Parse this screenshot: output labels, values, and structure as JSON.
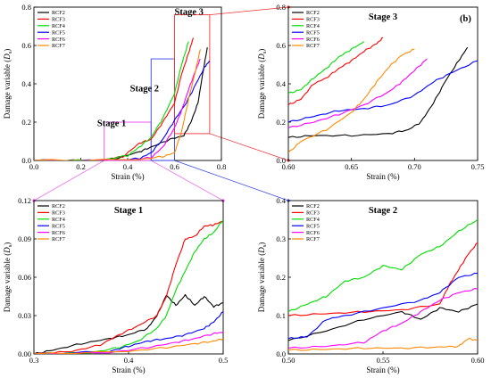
{
  "chart_data": [
    {
      "id": "a",
      "type": "line",
      "panel_label": "",
      "title": "",
      "xlabel": "Strain (%)",
      "ylabel": "Damage variable (D_s)",
      "xlim": [
        0,
        0.8
      ],
      "ylim": [
        0,
        0.8
      ],
      "xticks": [
        "0.0",
        "0.2",
        "0.4",
        "0.6",
        "0.8"
      ],
      "yticks": [
        "0.0",
        "0.2",
        "0.4",
        "0.6",
        "0.8"
      ],
      "legend": "top-left",
      "annotations": [
        {
          "text": "Stage 1",
          "x": 0.27,
          "y": 0.18
        },
        {
          "text": "Stage 2",
          "x": 0.41,
          "y": 0.36
        },
        {
          "text": "Stage 3",
          "x": 0.6,
          "y": 0.76
        }
      ],
      "zoom_boxes": [
        {
          "stage": 1,
          "x": [
            0.3,
            0.5
          ],
          "y": [
            0,
            0.2
          ],
          "color": "#ee44ee"
        },
        {
          "stage": 2,
          "x": [
            0.5,
            0.6
          ],
          "y": [
            0,
            0.53
          ],
          "color": "#3344ee"
        },
        {
          "stage": 3,
          "x": [
            0.6,
            0.75
          ],
          "y": [
            0.14,
            0.76
          ],
          "color": "#ee3333"
        }
      ],
      "series": [
        {
          "name": "RCF2",
          "color": "#000000",
          "x": [
            0,
            0.25,
            0.35,
            0.45,
            0.5,
            0.58,
            0.64,
            0.67,
            0.7,
            0.72,
            0.74
          ],
          "y": [
            0,
            0,
            0.01,
            0.045,
            0.07,
            0.11,
            0.13,
            0.2,
            0.3,
            0.45,
            0.59
          ]
        },
        {
          "name": "RCF3",
          "color": "#ff0000",
          "x": [
            0,
            0.28,
            0.38,
            0.45,
            0.5,
            0.55,
            0.6,
            0.63,
            0.66,
            0.68
          ],
          "y": [
            0,
            0,
            0.02,
            0.09,
            0.11,
            0.2,
            0.3,
            0.45,
            0.56,
            0.64
          ]
        },
        {
          "name": "RCF4",
          "color": "#00dd00",
          "x": [
            0,
            0.28,
            0.4,
            0.45,
            0.5,
            0.55,
            0.6,
            0.63,
            0.66
          ],
          "y": [
            0,
            0,
            0.025,
            0.07,
            0.12,
            0.22,
            0.35,
            0.5,
            0.62
          ]
        },
        {
          "name": "RCF5",
          "color": "#0000ff",
          "x": [
            0,
            0.35,
            0.45,
            0.5,
            0.55,
            0.6,
            0.65,
            0.7,
            0.73,
            0.75
          ],
          "y": [
            0,
            0,
            0.01,
            0.04,
            0.11,
            0.21,
            0.3,
            0.42,
            0.49,
            0.52
          ]
        },
        {
          "name": "RCF6",
          "color": "#ff00ff",
          "x": [
            0,
            0.4,
            0.5,
            0.55,
            0.6,
            0.63,
            0.66,
            0.69,
            0.71
          ],
          "y": [
            0,
            0,
            0.015,
            0.07,
            0.17,
            0.26,
            0.37,
            0.47,
            0.53
          ]
        },
        {
          "name": "RCF7",
          "color": "#ff8800",
          "x": [
            0,
            0.45,
            0.55,
            0.6,
            0.63,
            0.66,
            0.69,
            0.71
          ],
          "y": [
            0,
            0.005,
            0.02,
            0.04,
            0.15,
            0.32,
            0.47,
            0.58
          ]
        }
      ]
    },
    {
      "id": "b",
      "type": "line",
      "panel_label": "(b)",
      "title": "Stage 3",
      "xlabel": "Strain (%)",
      "ylabel": "Damage variable (D_s)",
      "xlim": [
        0.6,
        0.75
      ],
      "ylim": [
        0,
        0.8
      ],
      "xticks": [
        "0.60",
        "0.65",
        "0.70",
        "0.75"
      ],
      "yticks": [
        "0.0",
        "0.2",
        "0.4",
        "0.6",
        "0.8"
      ],
      "legend": "top-left",
      "series": [
        {
          "name": "RCF2",
          "color": "#000000",
          "x": [
            0.6,
            0.62,
            0.65,
            0.68,
            0.695,
            0.705,
            0.715,
            0.725,
            0.735,
            0.742
          ],
          "y": [
            0.12,
            0.13,
            0.13,
            0.14,
            0.16,
            0.2,
            0.3,
            0.42,
            0.52,
            0.59
          ]
        },
        {
          "name": "RCF3",
          "color": "#ff0000",
          "x": [
            0.6,
            0.61,
            0.62,
            0.63,
            0.64,
            0.65,
            0.66,
            0.67,
            0.675
          ],
          "y": [
            0.29,
            0.32,
            0.4,
            0.43,
            0.48,
            0.52,
            0.57,
            0.61,
            0.64
          ]
        },
        {
          "name": "RCF4",
          "color": "#00dd00",
          "x": [
            0.6,
            0.61,
            0.62,
            0.63,
            0.64,
            0.65,
            0.66
          ],
          "y": [
            0.35,
            0.37,
            0.43,
            0.48,
            0.54,
            0.58,
            0.62
          ]
        },
        {
          "name": "RCF5",
          "color": "#0000ff",
          "x": [
            0.6,
            0.62,
            0.64,
            0.66,
            0.68,
            0.7,
            0.715,
            0.73,
            0.75
          ],
          "y": [
            0.2,
            0.23,
            0.26,
            0.27,
            0.29,
            0.34,
            0.41,
            0.46,
            0.52
          ]
        },
        {
          "name": "RCF6",
          "color": "#ff00ff",
          "x": [
            0.6,
            0.62,
            0.64,
            0.66,
            0.68,
            0.69,
            0.7,
            0.71
          ],
          "y": [
            0.17,
            0.2,
            0.24,
            0.29,
            0.36,
            0.41,
            0.47,
            0.53
          ]
        },
        {
          "name": "RCF7",
          "color": "#ff8800",
          "x": [
            0.6,
            0.61,
            0.63,
            0.65,
            0.66,
            0.67,
            0.68,
            0.69,
            0.7
          ],
          "y": [
            0.04,
            0.1,
            0.16,
            0.25,
            0.32,
            0.41,
            0.49,
            0.55,
            0.58
          ]
        }
      ]
    },
    {
      "id": "c",
      "type": "line",
      "panel_label": "",
      "title": "Stage 1",
      "xlabel": "Strain (%)",
      "ylabel": "Damage variable (D_s)",
      "xlim": [
        0.3,
        0.5
      ],
      "ylim": [
        0,
        0.12
      ],
      "xticks": [
        "0.3",
        "0.4",
        "0.5"
      ],
      "yticks": [
        "0.00",
        "0.03",
        "0.06",
        "0.09",
        "0.12"
      ],
      "legend": "top-left",
      "series": [
        {
          "name": "RCF2",
          "color": "#000000",
          "x": [
            0.3,
            0.32,
            0.35,
            0.38,
            0.4,
            0.42,
            0.43,
            0.44,
            0.45,
            0.46,
            0.47,
            0.48,
            0.49,
            0.5
          ],
          "y": [
            0,
            0.003,
            0.008,
            0.012,
            0.015,
            0.02,
            0.03,
            0.046,
            0.038,
            0.046,
            0.038,
            0.045,
            0.037,
            0.04
          ]
        },
        {
          "name": "RCF3",
          "color": "#ff0000",
          "x": [
            0.3,
            0.34,
            0.37,
            0.39,
            0.41,
            0.43,
            0.44,
            0.45,
            0.46,
            0.47,
            0.48,
            0.49,
            0.5
          ],
          "y": [
            0,
            0.002,
            0.007,
            0.015,
            0.022,
            0.03,
            0.045,
            0.07,
            0.09,
            0.092,
            0.1,
            0.101,
            0.104
          ]
        },
        {
          "name": "RCF4",
          "color": "#00dd00",
          "x": [
            0.3,
            0.36,
            0.39,
            0.41,
            0.43,
            0.44,
            0.45,
            0.46,
            0.47,
            0.48,
            0.49,
            0.5
          ],
          "y": [
            0,
            0.001,
            0.005,
            0.01,
            0.02,
            0.03,
            0.05,
            0.065,
            0.08,
            0.09,
            0.095,
            0.105
          ]
        },
        {
          "name": "RCF5",
          "color": "#0000ff",
          "x": [
            0.3,
            0.38,
            0.4,
            0.42,
            0.44,
            0.46,
            0.48,
            0.49,
            0.5
          ],
          "y": [
            0,
            0.002,
            0.006,
            0.01,
            0.012,
            0.015,
            0.02,
            0.025,
            0.033
          ]
        },
        {
          "name": "RCF6",
          "color": "#ff00ff",
          "x": [
            0.3,
            0.38,
            0.42,
            0.45,
            0.47,
            0.49,
            0.5
          ],
          "y": [
            0,
            0.001,
            0.005,
            0.009,
            0.012,
            0.016,
            0.017
          ]
        },
        {
          "name": "RCF7",
          "color": "#ff8800",
          "x": [
            0.3,
            0.4,
            0.44,
            0.47,
            0.49,
            0.5
          ],
          "y": [
            0,
            0.002,
            0.005,
            0.008,
            0.01,
            0.012
          ]
        }
      ]
    },
    {
      "id": "d",
      "type": "line",
      "panel_label": "",
      "title": "Stage 2",
      "xlabel": "Strain (%)",
      "ylabel": "Damage variable (D_s)",
      "xlim": [
        0.5,
        0.6
      ],
      "ylim": [
        0,
        0.4
      ],
      "xticks": [
        "0.50",
        "0.55",
        "0.60"
      ],
      "yticks": [
        "0.0",
        "0.1",
        "0.2",
        "0.3",
        "0.4"
      ],
      "legend": "top-left",
      "series": [
        {
          "name": "RCF2",
          "color": "#000000",
          "x": [
            0.5,
            0.52,
            0.54,
            0.56,
            0.57,
            0.58,
            0.59,
            0.6
          ],
          "y": [
            0.035,
            0.06,
            0.09,
            0.11,
            0.09,
            0.12,
            0.11,
            0.13
          ]
        },
        {
          "name": "RCF3",
          "color": "#ff0000",
          "x": [
            0.5,
            0.52,
            0.54,
            0.56,
            0.58,
            0.585,
            0.59,
            0.595,
            0.6
          ],
          "y": [
            0.1,
            0.105,
            0.11,
            0.115,
            0.13,
            0.18,
            0.22,
            0.26,
            0.29
          ]
        },
        {
          "name": "RCF4",
          "color": "#00dd00",
          "x": [
            0.5,
            0.51,
            0.52,
            0.53,
            0.54,
            0.55,
            0.56,
            0.57,
            0.58,
            0.59,
            0.6
          ],
          "y": [
            0.11,
            0.13,
            0.15,
            0.19,
            0.2,
            0.23,
            0.22,
            0.26,
            0.28,
            0.32,
            0.35
          ]
        },
        {
          "name": "RCF5",
          "color": "#0000ff",
          "x": [
            0.5,
            0.51,
            0.52,
            0.53,
            0.55,
            0.57,
            0.58,
            0.59,
            0.6
          ],
          "y": [
            0.04,
            0.045,
            0.09,
            0.1,
            0.12,
            0.14,
            0.16,
            0.2,
            0.21
          ]
        },
        {
          "name": "RCF6",
          "color": "#ff00ff",
          "x": [
            0.5,
            0.52,
            0.54,
            0.55,
            0.56,
            0.57,
            0.58,
            0.59,
            0.6
          ],
          "y": [
            0.015,
            0.02,
            0.03,
            0.06,
            0.08,
            0.11,
            0.14,
            0.16,
            0.17
          ]
        },
        {
          "name": "RCF7",
          "color": "#ff8800",
          "x": [
            0.5,
            0.52,
            0.54,
            0.56,
            0.58,
            0.59,
            0.595,
            0.6
          ],
          "y": [
            0.01,
            0.012,
            0.015,
            0.015,
            0.018,
            0.02,
            0.04,
            0.035
          ]
        }
      ]
    }
  ]
}
